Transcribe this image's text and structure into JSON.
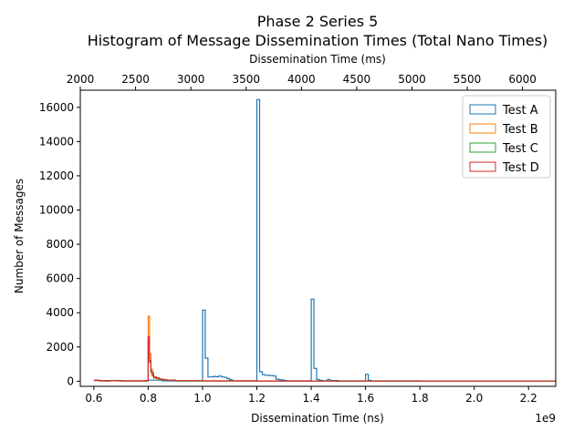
{
  "chart_data": {
    "type": "histogram",
    "title": "Phase 2 Series 5",
    "subtitle": "Histogram of Message Dissemination Times (Total Nano Times)",
    "xlabel": "Dissemination Time (ns)",
    "x_offset_label": "1e9",
    "ylabel": "Number of Messages",
    "top_xlabel": "Dissemination Time (ms)",
    "xlim": [
      0.55,
      2.3
    ],
    "ylim": [
      -300,
      17000
    ],
    "top_xlim": [
      2000,
      6300
    ],
    "x_ticks": [
      0.6,
      0.8,
      1.0,
      1.2,
      1.4,
      1.6,
      1.8,
      2.0,
      2.2
    ],
    "x_tick_labels": [
      "0.6",
      "0.8",
      "1.0",
      "1.2",
      "1.4",
      "1.6",
      "1.8",
      "2.0",
      "2.2"
    ],
    "y_ticks": [
      0,
      2000,
      4000,
      6000,
      8000,
      10000,
      12000,
      14000,
      16000
    ],
    "y_tick_labels": [
      "0",
      "2000",
      "4000",
      "6000",
      "8000",
      "10000",
      "12000",
      "14000",
      "16000"
    ],
    "top_x_ticks": [
      2000,
      2500,
      3000,
      3500,
      4000,
      4500,
      5000,
      5500,
      6000
    ],
    "top_x_tick_labels": [
      "2000",
      "2500",
      "3000",
      "3500",
      "4000",
      "4500",
      "5000",
      "5500",
      "6000"
    ],
    "grid": false,
    "legend_position": "top-right",
    "series": [
      {
        "name": "Test A",
        "color": "#1f77b4",
        "x": [
          0.6,
          0.62,
          0.64,
          0.66,
          0.68,
          0.7,
          0.8,
          0.85,
          0.9,
          0.95,
          1.0,
          1.01,
          1.02,
          1.03,
          1.04,
          1.05,
          1.06,
          1.07,
          1.08,
          1.09,
          1.1,
          1.11,
          1.2,
          1.21,
          1.22,
          1.23,
          1.24,
          1.25,
          1.26,
          1.27,
          1.28,
          1.29,
          1.3,
          1.31,
          1.35,
          1.4,
          1.41,
          1.42,
          1.43,
          1.44,
          1.45,
          1.46,
          1.47,
          1.5,
          1.6,
          1.61,
          1.62,
          1.7,
          1.8,
          1.9,
          2.0,
          2.1,
          2.2,
          2.3
        ],
        "y": [
          60,
          20,
          10,
          30,
          20,
          10,
          60,
          20,
          10,
          10,
          4150,
          1350,
          250,
          250,
          280,
          260,
          300,
          250,
          220,
          150,
          80,
          20,
          16450,
          550,
          380,
          350,
          340,
          330,
          300,
          120,
          90,
          70,
          40,
          20,
          20,
          4800,
          750,
          100,
          50,
          30,
          30,
          100,
          40,
          20,
          400,
          50,
          20,
          20,
          10,
          10,
          10,
          10,
          10,
          10
        ]
      },
      {
        "name": "Test B",
        "color": "#ff7f0e",
        "x": [
          0.6,
          0.62,
          0.64,
          0.66,
          0.68,
          0.7,
          0.75,
          0.79,
          0.8,
          0.805,
          0.81,
          0.815,
          0.82,
          0.83,
          0.84,
          0.85,
          0.86,
          0.87,
          0.9,
          1.0,
          1.2,
          1.4,
          1.6,
          1.8,
          2.0,
          2.2,
          2.3
        ],
        "y": [
          60,
          40,
          20,
          30,
          25,
          20,
          20,
          40,
          3800,
          1600,
          700,
          300,
          200,
          150,
          120,
          100,
          80,
          60,
          30,
          20,
          15,
          10,
          10,
          10,
          10,
          10,
          10
        ]
      },
      {
        "name": "Test C",
        "color": "#2ca02c",
        "x": [
          0.6,
          0.7,
          0.8,
          0.805,
          0.81,
          0.82,
          0.84,
          0.86,
          0.9,
          1.0,
          1.4,
          1.8,
          2.2,
          2.3
        ],
        "y": [
          40,
          20,
          2400,
          1100,
          500,
          200,
          100,
          60,
          20,
          15,
          10,
          10,
          10,
          10
        ]
      },
      {
        "name": "Test D",
        "color": "#d62728",
        "x": [
          0.6,
          0.62,
          0.64,
          0.66,
          0.68,
          0.7,
          0.75,
          0.79,
          0.8,
          0.805,
          0.81,
          0.815,
          0.82,
          0.83,
          0.84,
          0.85,
          0.86,
          0.87,
          0.9,
          1.0,
          1.2,
          1.4,
          1.6,
          1.8,
          2.0,
          2.2,
          2.3
        ],
        "y": [
          50,
          30,
          20,
          30,
          25,
          20,
          20,
          40,
          2600,
          1200,
          600,
          350,
          250,
          180,
          130,
          100,
          80,
          60,
          30,
          20,
          15,
          10,
          10,
          10,
          10,
          10,
          10
        ]
      }
    ]
  }
}
